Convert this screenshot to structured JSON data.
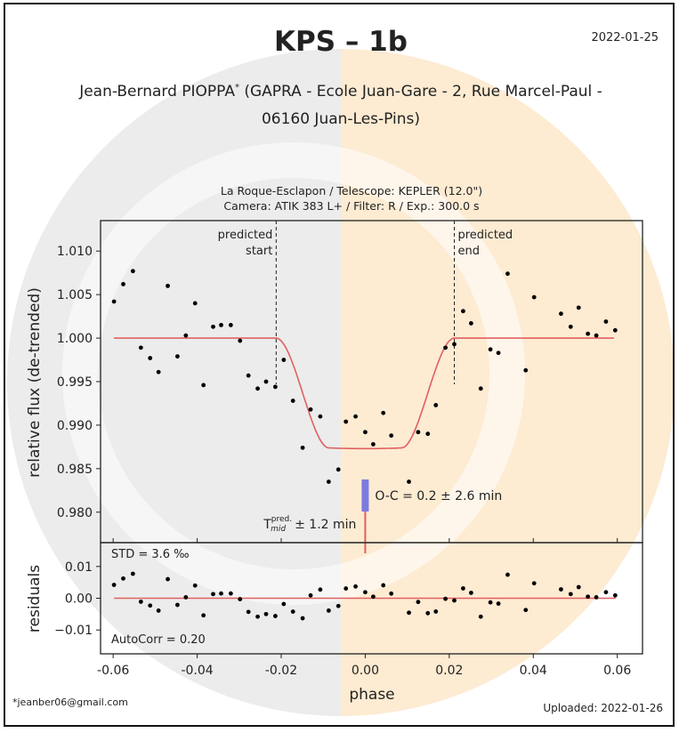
{
  "header": {
    "title": "KPS – 1b",
    "date": "2022-01-25",
    "author_line1": "Jean-Bernard PIOPPA",
    "author_star": "*",
    "author_affil1": " (GAPRA - Ecole Juan-Gare - 2, Rue Marcel-Paul -",
    "author_line2": "06160 Juan-Les-Pins)",
    "obs_line1": "La Roque-Esclapon / Telescope: KEPLER (12.0\")",
    "obs_line2": "Camera: ATIK 383 L+ / Filter: R / Exp.: 300.0 s"
  },
  "footer": {
    "email": "*jeanber06@gmail.com",
    "uploaded": "Uploaded: 2022-01-26"
  },
  "chart_data": {
    "type": "scatter",
    "xlabel": "phase",
    "ylabel": "relative flux (de-trended)",
    "residual_ylabel": "residuals",
    "xlim": [
      -0.063,
      0.066
    ],
    "ylim": [
      0.9765,
      1.0135
    ],
    "residual_ylim": [
      -0.0175,
      0.0175
    ],
    "xticks": [
      "-0.06",
      "-0.04",
      "-0.02",
      "0.00",
      "0.02",
      "0.04",
      "0.06"
    ],
    "xtick_values": [
      -0.06,
      -0.04,
      -0.02,
      0.0,
      0.02,
      0.04,
      0.06
    ],
    "yticks": [
      "0.980",
      "0.985",
      "0.990",
      "0.995",
      "1.000",
      "1.005",
      "1.010"
    ],
    "ytick_values": [
      0.98,
      0.985,
      0.99,
      0.995,
      1.0,
      1.005,
      1.01
    ],
    "residual_yticks": [
      "0.01",
      "0.00",
      "−0.01"
    ],
    "residual_ytick_values": [
      0.01,
      0.0,
      -0.01
    ],
    "predicted_start": {
      "x": -0.0212,
      "label1": "predicted",
      "label2": "start"
    },
    "predicted_end": {
      "x": 0.0212,
      "label1": "predicted",
      "label2": "end"
    },
    "model": {
      "depth": 0.0127,
      "t14_half": 0.0212,
      "ingress": 0.0125,
      "color": "#e06060"
    },
    "points": [
      [
        -0.0598,
        1.0042
      ],
      [
        -0.0576,
        1.0062
      ],
      [
        -0.0553,
        1.0077
      ],
      [
        -0.0534,
        0.9989
      ],
      [
        -0.0512,
        0.9977
      ],
      [
        -0.0492,
        0.9961
      ],
      [
        -0.047,
        1.006
      ],
      [
        -0.0447,
        0.9979
      ],
      [
        -0.0427,
        1.0003
      ],
      [
        -0.0405,
        1.004
      ],
      [
        -0.0385,
        0.9946
      ],
      [
        -0.0362,
        1.0013
      ],
      [
        -0.0343,
        1.0015
      ],
      [
        -0.032,
        1.0015
      ],
      [
        -0.0298,
        0.9997
      ],
      [
        -0.0278,
        0.9957
      ],
      [
        -0.0256,
        0.9942
      ],
      [
        -0.0236,
        0.995
      ],
      [
        -0.0214,
        0.9944
      ],
      [
        -0.0194,
        0.9975
      ],
      [
        -0.0172,
        0.9928
      ],
      [
        -0.0149,
        0.9874
      ],
      [
        -0.013,
        0.9918
      ],
      [
        -0.0107,
        0.991
      ],
      [
        -0.0087,
        0.9835
      ],
      [
        -0.0064,
        0.9849
      ],
      [
        -0.0046,
        0.9904
      ],
      [
        -0.0023,
        0.991
      ],
      [
        0.0,
        0.9892
      ],
      [
        0.0019,
        0.9878
      ],
      [
        0.0043,
        0.9914
      ],
      [
        0.0062,
        0.9888
      ],
      [
        0.0104,
        0.9835
      ],
      [
        0.0126,
        0.9892
      ],
      [
        0.0149,
        0.989
      ],
      [
        0.0168,
        0.9923
      ],
      [
        0.0191,
        0.9989
      ],
      [
        0.0212,
        0.9993
      ],
      [
        0.0233,
        1.0031
      ],
      [
        0.0252,
        1.0017
      ],
      [
        0.0275,
        0.9942
      ],
      [
        0.0298,
        0.9987
      ],
      [
        0.0317,
        0.9983
      ],
      [
        0.0339,
        1.0074
      ],
      [
        0.0382,
        0.9963
      ],
      [
        0.0402,
        1.0047
      ],
      [
        0.0466,
        1.0028
      ],
      [
        0.0489,
        1.0013
      ],
      [
        0.0508,
        1.0035
      ],
      [
        0.053,
        1.0005
      ],
      [
        0.055,
        1.0003
      ],
      [
        0.0573,
        1.0019
      ],
      [
        0.0595,
        1.0009
      ]
    ],
    "oc_label": "O-C = 0.2 ± 2.6 min",
    "oc_color": "#7b7be0",
    "tmid_label_T": "T",
    "tmid_label_sup": "pred.",
    "tmid_label_sub": "mid",
    "tmid_label_err": "± 1.2 min",
    "std_label": "STD = 3.6 ‰",
    "autocorr_label": "AutoCorr = 0.20"
  }
}
